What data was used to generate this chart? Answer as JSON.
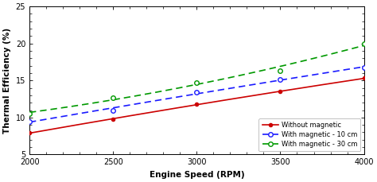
{
  "x": [
    2000,
    2500,
    3000,
    3500,
    4000
  ],
  "y_no_mag": [
    7.9,
    9.8,
    11.8,
    13.5,
    15.3
  ],
  "y_mag_10": [
    9.5,
    11.0,
    13.4,
    15.1,
    16.8
  ],
  "y_mag_30": [
    10.5,
    12.7,
    14.7,
    16.3,
    20.0
  ],
  "line_colors": [
    "#cc0000",
    "#1a1aff",
    "#009900"
  ],
  "legend_labels": [
    "Without magnetic",
    "With magnetic - 10 cm",
    "With magnetic - 30 cm"
  ],
  "xlabel": "Engine Speed (RPM)",
  "ylabel": "Thermal Efficiency (%)",
  "xlim": [
    2000,
    4000
  ],
  "ylim": [
    5,
    25
  ],
  "yticks": [
    5,
    10,
    15,
    20,
    25
  ],
  "xticks": [
    2000,
    2500,
    3000,
    3500,
    4000
  ],
  "bg_color": "#ffffff",
  "plot_bg_color": "#ffffff"
}
